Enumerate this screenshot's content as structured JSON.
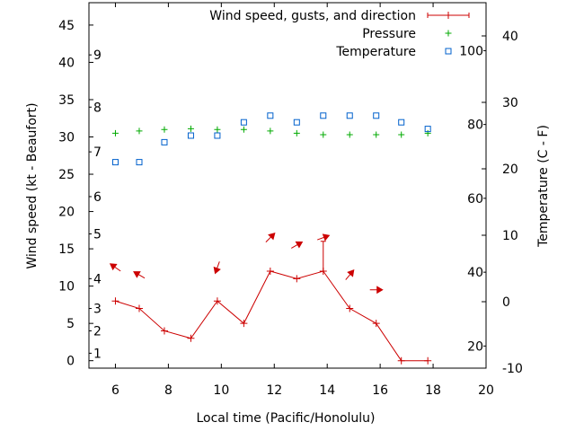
{
  "chart_data": {
    "type": "line",
    "xlabel": "Local time (Pacific/Honolulu)",
    "ylabel": "Wind speed (kt - Beaufort)",
    "y2label": "Temperature (C - F)",
    "xlim": [
      5,
      20
    ],
    "ylim": [
      -1,
      48
    ],
    "y2lim": [
      -10,
      45
    ],
    "xticks": [
      6,
      8,
      10,
      12,
      14,
      16,
      18,
      20
    ],
    "yticks": [
      0,
      5,
      10,
      15,
      20,
      25,
      30,
      35,
      40,
      45
    ],
    "y2ticks": [
      -10,
      0,
      10,
      20,
      30,
      40
    ],
    "beaufort_scale": [
      {
        "label": "1",
        "kt": 1
      },
      {
        "label": "2",
        "kt": 4
      },
      {
        "label": "3",
        "kt": 7
      },
      {
        "label": "4",
        "kt": 11
      },
      {
        "label": "5",
        "kt": 17
      },
      {
        "label": "6",
        "kt": 22
      },
      {
        "label": "7",
        "kt": 28
      },
      {
        "label": "8",
        "kt": 34
      },
      {
        "label": "9",
        "kt": 41
      }
    ],
    "fahrenheit_scale": [
      {
        "label": "20",
        "c": -6.67
      },
      {
        "label": "40",
        "c": 4.44
      },
      {
        "label": "60",
        "c": 15.56
      },
      {
        "label": "80",
        "c": 26.67
      },
      {
        "label": "100",
        "c": 37.78
      }
    ],
    "legend": [
      "Wind speed, gusts, and direction",
      "Pressure",
      "Temperature"
    ],
    "legend_position": "top-right",
    "series": [
      {
        "name": "Wind speed, gusts, and direction",
        "color": "#cc0000",
        "x": [
          6,
          6.9,
          7.85,
          8.85,
          9.85,
          10.85,
          11.85,
          12.85,
          13.85,
          14.85,
          15.85,
          16.8,
          17.8
        ],
        "y": [
          8,
          7,
          4,
          3,
          8,
          5,
          12,
          11,
          12,
          7,
          5,
          0,
          0
        ],
        "gusts": [
          null,
          null,
          null,
          null,
          null,
          null,
          null,
          null,
          16,
          null,
          null,
          null,
          null
        ],
        "direction_points": [
          {
            "x": 6,
            "deg": 125
          },
          {
            "x": 6.9,
            "deg": 120
          },
          {
            "x": 9.85,
            "deg": 20
          },
          {
            "x": 11.85,
            "deg": 225
          },
          {
            "x": 12.85,
            "deg": 240
          },
          {
            "x": 13.85,
            "deg": 250
          },
          {
            "x": 14.85,
            "deg": 220
          },
          {
            "x": 15.85,
            "deg": 270
          }
        ]
      },
      {
        "name": "Pressure",
        "color": "#00aa00",
        "marker": "+",
        "x": [
          6,
          6.9,
          7.85,
          8.85,
          9.85,
          10.85,
          11.85,
          12.85,
          13.85,
          14.85,
          15.85,
          16.8,
          17.8
        ],
        "y": [
          30.5,
          30.8,
          31,
          31.1,
          31,
          31,
          30.8,
          30.5,
          30.3,
          30.3,
          30.3,
          30.3,
          30.5
        ]
      },
      {
        "name": "Temperature",
        "color": "#0060cc",
        "marker": "square",
        "axis": "right",
        "x": [
          6,
          6.9,
          7.85,
          8.85,
          9.85,
          10.85,
          11.85,
          12.85,
          13.85,
          14.85,
          15.85,
          16.8,
          17.8
        ],
        "y": [
          21,
          21,
          24,
          25,
          25,
          27,
          28,
          27,
          28,
          28,
          28,
          27,
          26
        ]
      }
    ]
  }
}
